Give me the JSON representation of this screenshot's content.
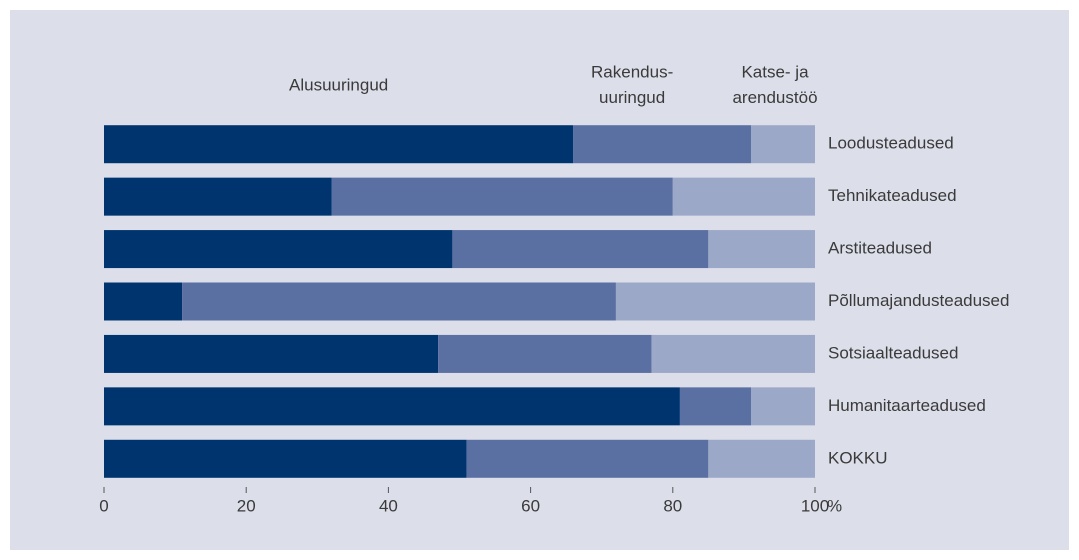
{
  "chart_data": {
    "type": "stacked_barh",
    "categories": [
      "Loodusteadused",
      "Tehnikateadused",
      "Arstiteadused",
      "Põllumajandusteadused",
      "Sotsiaalteadused",
      "Humanitaarteadused",
      "KOKKU"
    ],
    "series": [
      {
        "name": "Alusuuringud",
        "color": "#00346f",
        "values": [
          66,
          32,
          49,
          11,
          47,
          81,
          51
        ]
      },
      {
        "name": "Rakendus-\nuuringud",
        "color": "#5a6fa2",
        "values": [
          25,
          48,
          36,
          61,
          30,
          10,
          34
        ]
      },
      {
        "name": "Katse- ja\narendustöö",
        "color": "#9ca8c8",
        "values": [
          9,
          20,
          15,
          28,
          23,
          9,
          15
        ]
      }
    ],
    "xlim": [
      0,
      100
    ],
    "xticks": [
      0,
      20,
      40,
      60,
      80,
      100
    ],
    "xlabel": "%"
  }
}
